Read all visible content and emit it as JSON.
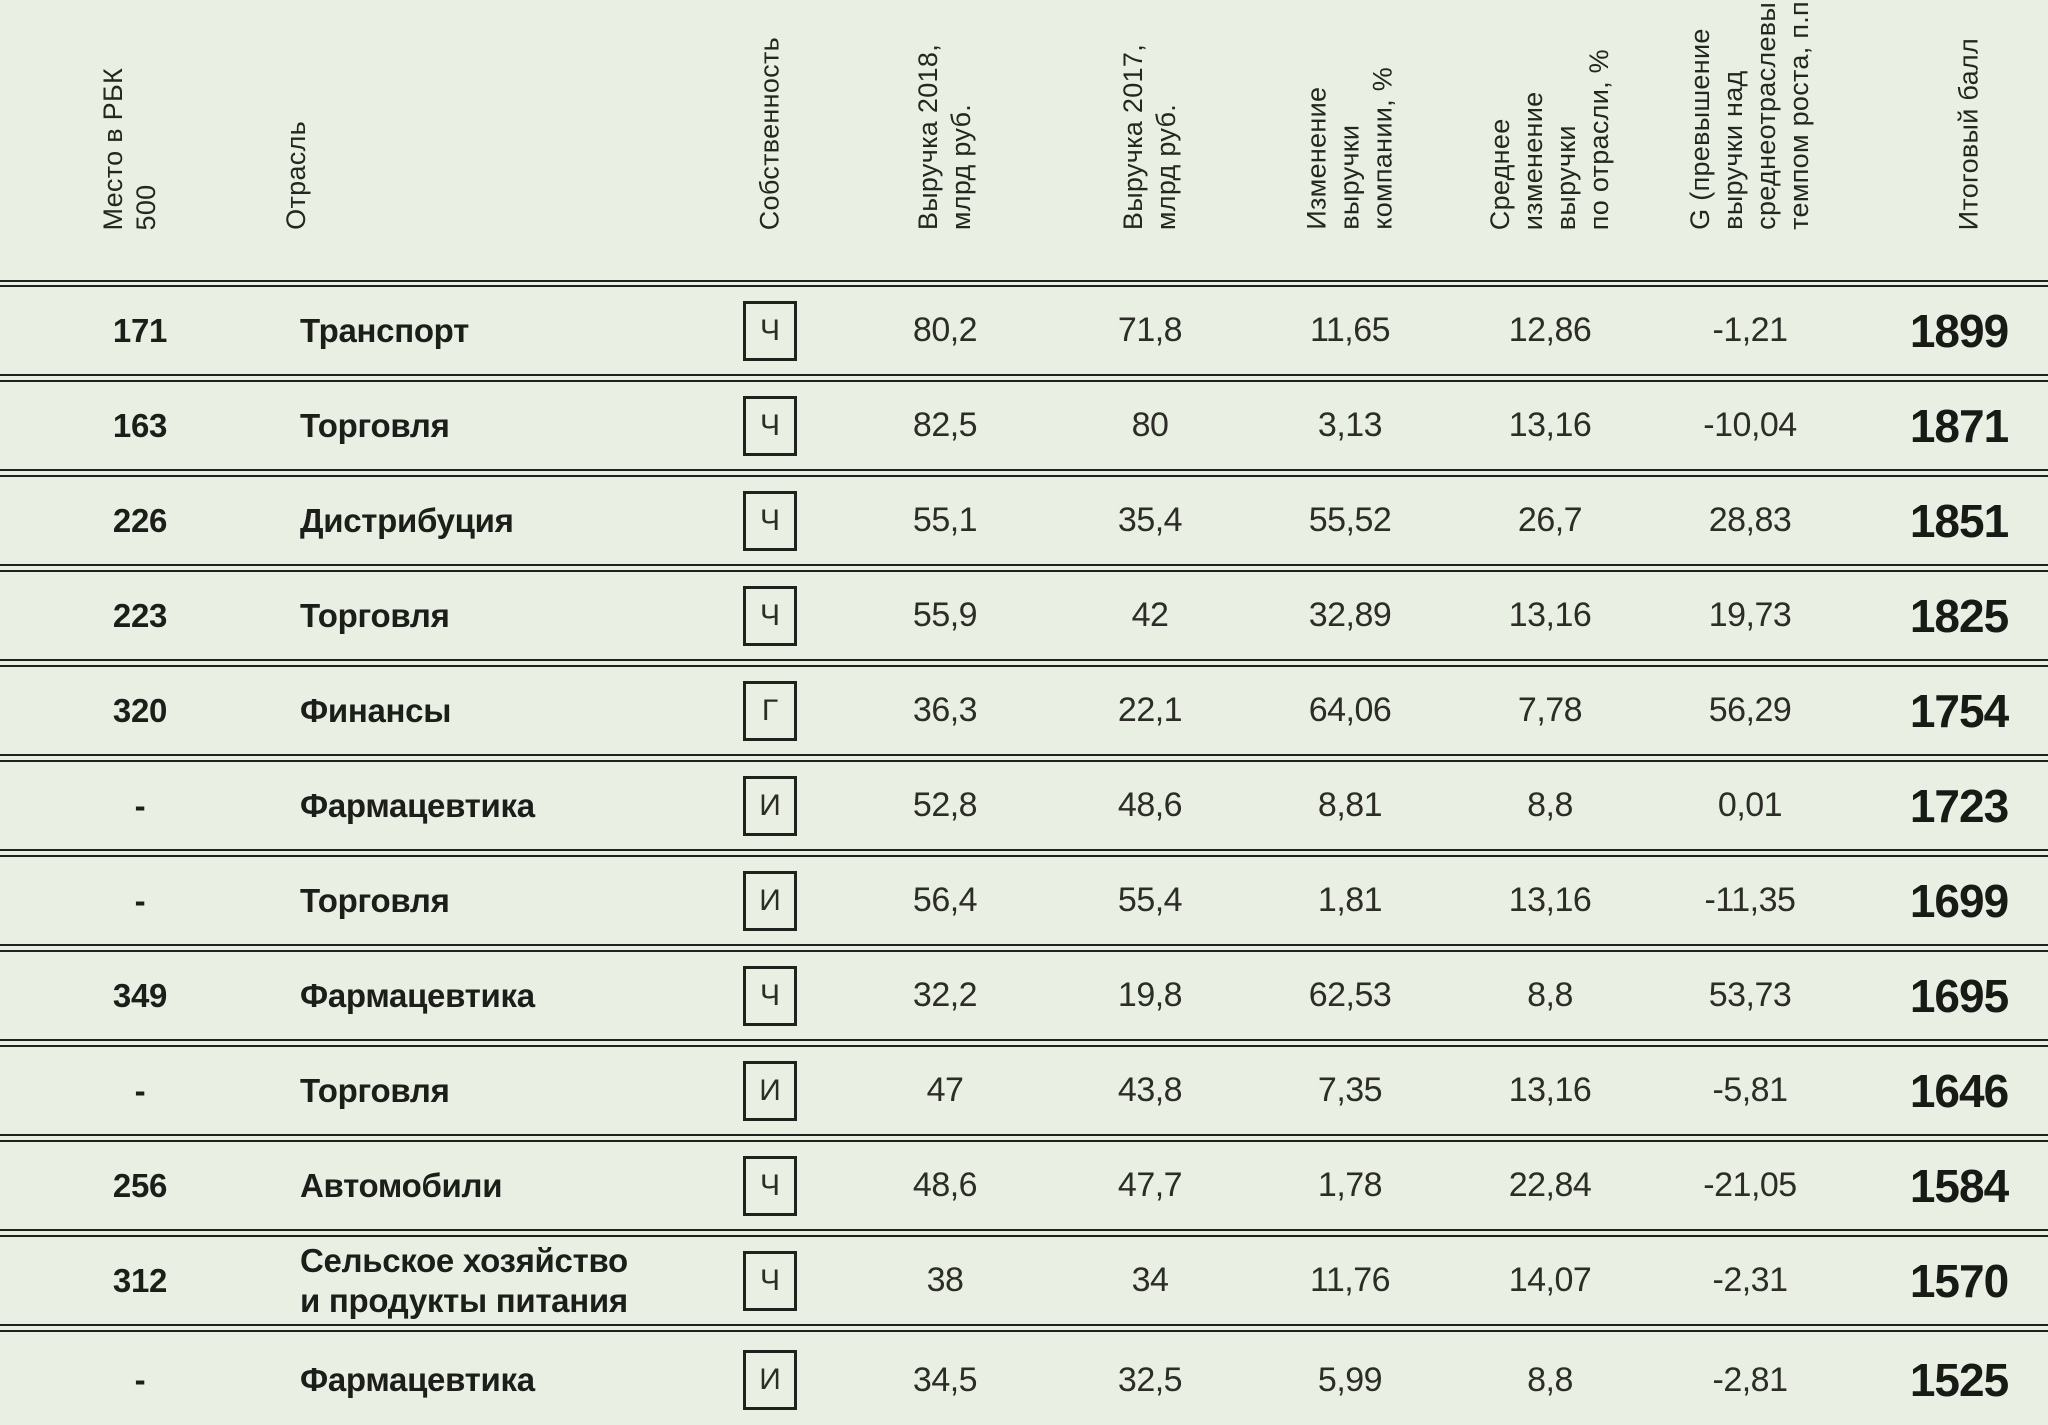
{
  "colors": {
    "background": "#e9f0e3",
    "ink": "#20231d",
    "bold_text": "#1c1e19",
    "regular_text": "#2b2d26"
  },
  "table": {
    "columns": [
      {
        "id": "rank",
        "label": "Место в РБК\n500"
      },
      {
        "id": "industry",
        "label": "Отрасль"
      },
      {
        "id": "ownership",
        "label": "Собственность"
      },
      {
        "id": "rev2018",
        "label": "Выручка 2018,\nмлрд руб."
      },
      {
        "id": "rev2017",
        "label": "Выручка 2017,\nмлрд руб."
      },
      {
        "id": "change",
        "label": "Изменение\nвыручки\nкомпании, %"
      },
      {
        "id": "avg_change",
        "label": "Среднее\nизменение\nвыручки\nпо отрасли, %"
      },
      {
        "id": "g",
        "label": "G (превышение\nвыручки над\nсреднеотраслевым\nтемпом роста, п.п.)"
      },
      {
        "id": "score",
        "label": "Итоговый балл"
      }
    ],
    "rows": [
      {
        "rank": "171",
        "industry": "Транспорт",
        "ownership": "Ч",
        "rev2018": "80,2",
        "rev2017": "71,8",
        "change": "11,65",
        "avg_change": "12,86",
        "g": "-1,21",
        "score": "1899"
      },
      {
        "rank": "163",
        "industry": "Торговля",
        "ownership": "Ч",
        "rev2018": "82,5",
        "rev2017": "80",
        "change": "3,13",
        "avg_change": "13,16",
        "g": "-10,04",
        "score": "1871"
      },
      {
        "rank": "226",
        "industry": "Дистрибуция",
        "ownership": "Ч",
        "rev2018": "55,1",
        "rev2017": "35,4",
        "change": "55,52",
        "avg_change": "26,7",
        "g": "28,83",
        "score": "1851"
      },
      {
        "rank": "223",
        "industry": "Торговля",
        "ownership": "Ч",
        "rev2018": "55,9",
        "rev2017": "42",
        "change": "32,89",
        "avg_change": "13,16",
        "g": "19,73",
        "score": "1825"
      },
      {
        "rank": "320",
        "industry": "Финансы",
        "ownership": "Г",
        "rev2018": "36,3",
        "rev2017": "22,1",
        "change": "64,06",
        "avg_change": "7,78",
        "g": "56,29",
        "score": "1754"
      },
      {
        "rank": "-",
        "industry": "Фармацевтика",
        "ownership": "И",
        "rev2018": "52,8",
        "rev2017": "48,6",
        "change": "8,81",
        "avg_change": "8,8",
        "g": "0,01",
        "score": "1723"
      },
      {
        "rank": "-",
        "industry": "Торговля",
        "ownership": "И",
        "rev2018": "56,4",
        "rev2017": "55,4",
        "change": "1,81",
        "avg_change": "13,16",
        "g": "-11,35",
        "score": "1699"
      },
      {
        "rank": "349",
        "industry": "Фармацевтика",
        "ownership": "Ч",
        "rev2018": "32,2",
        "rev2017": "19,8",
        "change": "62,53",
        "avg_change": "8,8",
        "g": "53,73",
        "score": "1695"
      },
      {
        "rank": "-",
        "industry": "Торговля",
        "ownership": "И",
        "rev2018": "47",
        "rev2017": "43,8",
        "change": "7,35",
        "avg_change": "13,16",
        "g": "-5,81",
        "score": "1646"
      },
      {
        "rank": "256",
        "industry": "Автомобили",
        "ownership": "Ч",
        "rev2018": "48,6",
        "rev2017": "47,7",
        "change": "1,78",
        "avg_change": "22,84",
        "g": "-21,05",
        "score": "1584"
      },
      {
        "rank": "312",
        "industry": "Сельское хозяйство\nи продукты питания",
        "ownership": "Ч",
        "rev2018": "38",
        "rev2017": "34",
        "change": "11,76",
        "avg_change": "14,07",
        "g": "-2,31",
        "score": "1570"
      },
      {
        "rank": "-",
        "industry": "Фармацевтика",
        "ownership": "И",
        "rev2018": "34,5",
        "rev2017": "32,5",
        "change": "5,99",
        "avg_change": "8,8",
        "g": "-2,81",
        "score": "1525"
      }
    ]
  }
}
